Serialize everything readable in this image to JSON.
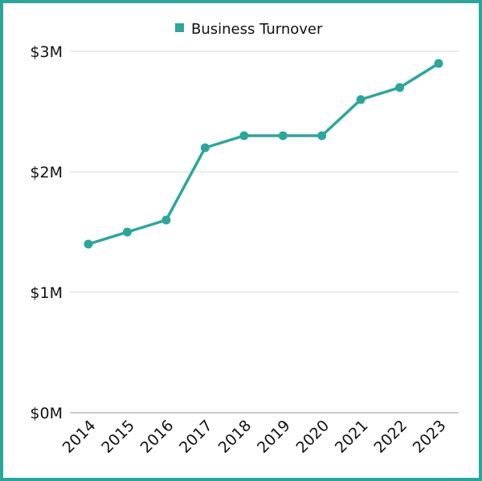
{
  "chart_data": {
    "type": "line",
    "title": "",
    "xlabel": "",
    "ylabel": "",
    "categories": [
      "2014",
      "2015",
      "2016",
      "2017",
      "2018",
      "2019",
      "2020",
      "2021",
      "2022",
      "2023"
    ],
    "series": [
      {
        "name": "Business Turnover",
        "values": [
          1.4,
          1.5,
          1.6,
          2.2,
          2.3,
          2.3,
          2.3,
          2.6,
          2.7,
          2.9
        ],
        "color": "#2aa79b"
      }
    ],
    "ylim": [
      0,
      3
    ],
    "yticks": [
      0,
      1,
      2,
      3
    ],
    "ytick_labels": [
      "$0M",
      "$1M",
      "$2M",
      "$3M"
    ],
    "grid": true,
    "legend": "top-center"
  },
  "colors": {
    "border": "#2aa79b",
    "grid": "#d9d9d9",
    "axis": "#999999"
  }
}
